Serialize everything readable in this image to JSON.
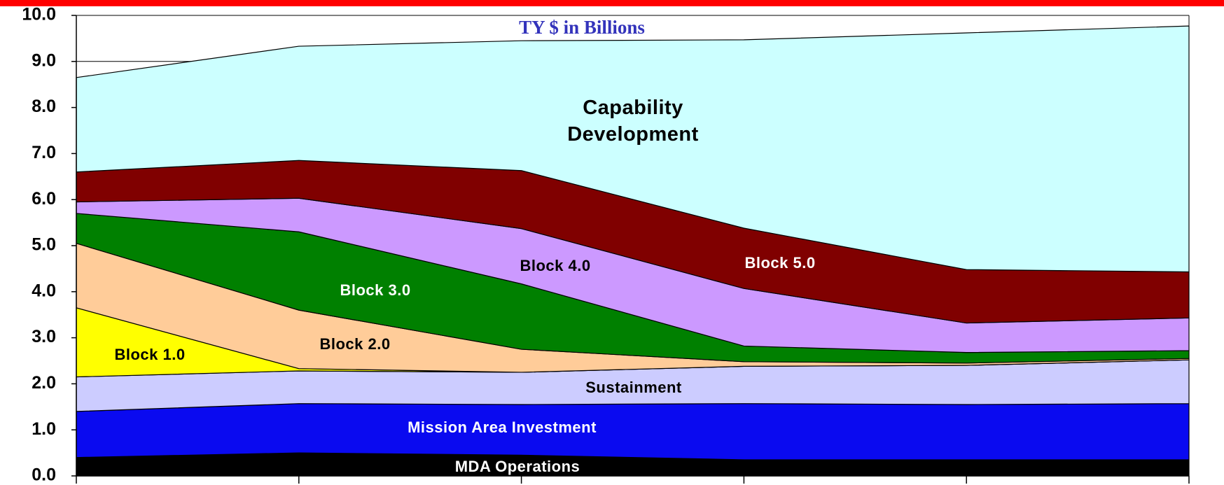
{
  "chart_data": {
    "type": "stacked_area",
    "title": "TY $ in Billions",
    "categories": [
      null,
      null,
      null,
      null,
      null,
      null
    ],
    "ylim": [
      0,
      10
    ],
    "yticks": [
      {
        "value": 0,
        "label": "0.0"
      },
      {
        "value": 1,
        "label": "1.0"
      },
      {
        "value": 2,
        "label": "2.0"
      },
      {
        "value": 3,
        "label": "3.0"
      },
      {
        "value": 4,
        "label": "4.0"
      },
      {
        "value": 5,
        "label": "5.0"
      },
      {
        "value": 6,
        "label": "6.0"
      },
      {
        "value": 7,
        "label": "7.0"
      },
      {
        "value": 8,
        "label": "8.0"
      },
      {
        "value": 9,
        "label": "9.0"
      },
      {
        "value": 10,
        "label": "10.0"
      }
    ],
    "grid": true,
    "series": [
      {
        "name": "MDA Operations",
        "color": "#000000",
        "values": [
          0.4,
          0.5,
          0.45,
          0.35,
          0.35,
          0.35
        ]
      },
      {
        "name": "Mission Area Investment",
        "color": "#0a0af0",
        "values": [
          1.0,
          1.07,
          1.1,
          1.22,
          1.2,
          1.22
        ]
      },
      {
        "name": "Sustainment",
        "color": "#ccccff",
        "values": [
          0.75,
          0.71,
          0.7,
          0.81,
          0.85,
          0.95
        ]
      },
      {
        "name": "Block 1.0",
        "color": "#ffff00",
        "values": [
          1.5,
          0.05,
          0,
          0,
          0,
          0
        ]
      },
      {
        "name": "Block 2.0",
        "color": "#ffcc99",
        "values": [
          1.4,
          1.27,
          0.5,
          0.1,
          0.05,
          0.03
        ]
      },
      {
        "name": "Block 3.0",
        "color": "#008000",
        "values": [
          0.65,
          1.7,
          1.42,
          0.34,
          0.23,
          0.17
        ]
      },
      {
        "name": "Block 4.0",
        "color": "#cc99ff",
        "values": [
          0.25,
          0.73,
          1.2,
          1.25,
          0.64,
          0.71
        ]
      },
      {
        "name": "Block 5.0",
        "color": "#800000",
        "values": [
          0.65,
          0.82,
          1.26,
          1.31,
          1.16,
          1.0
        ]
      },
      {
        "name": "Capability Development",
        "color": "#ccffff",
        "values": [
          2.05,
          2.48,
          2.82,
          4.09,
          5.14,
          5.34
        ]
      }
    ]
  }
}
